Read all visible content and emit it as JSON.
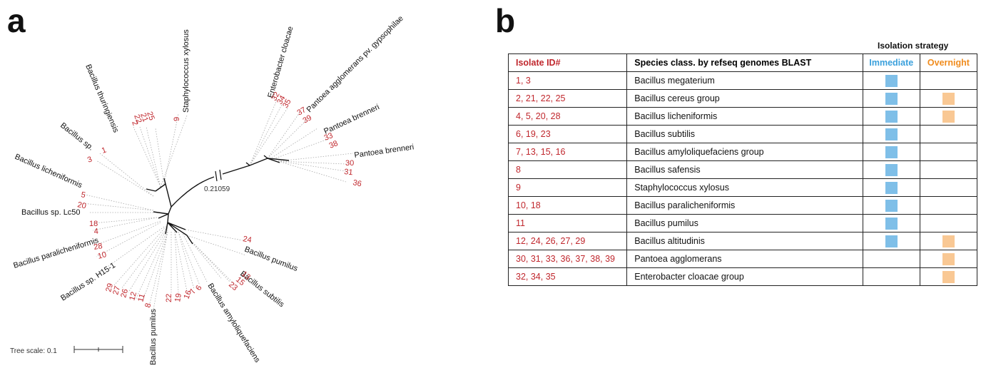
{
  "panel_a": {
    "letter": "a",
    "cut_length_label": "0.21059",
    "scale_label": "Tree scale: 0.1",
    "species_labels": [
      {
        "text": "Staphylococcus xylosus"
      },
      {
        "text": "Enterobacter cloacae"
      },
      {
        "text": "Pantoea agglomerans pv. gypsophilae"
      },
      {
        "text": "Pantoea brenneri"
      },
      {
        "text": "Pantoea brenneri"
      },
      {
        "text": "Bacillus thuringiensis"
      },
      {
        "text": "Bacillus sp."
      },
      {
        "text": "Bacillus licheniformis"
      },
      {
        "text": "Bacillus sp. Lc50"
      },
      {
        "text": "Bacillus paralicheniformis"
      },
      {
        "text": "Bacillus sp. H15-1"
      },
      {
        "text": "Bacillus pumilus"
      },
      {
        "text": "Bacillus pumilus"
      },
      {
        "text": "Bacillus subtilis"
      },
      {
        "text": "Bacillus amyloliquefaciens"
      }
    ],
    "isolate_labels": [
      {
        "text": "9"
      },
      {
        "text": "25"
      },
      {
        "text": "21"
      },
      {
        "text": "22"
      },
      {
        "text": "2"
      },
      {
        "text": "32"
      },
      {
        "text": "34"
      },
      {
        "text": "35"
      },
      {
        "text": "37"
      },
      {
        "text": "39"
      },
      {
        "text": "33"
      },
      {
        "text": "38"
      },
      {
        "text": "30"
      },
      {
        "text": "31"
      },
      {
        "text": "36"
      },
      {
        "text": "1"
      },
      {
        "text": "3"
      },
      {
        "text": "5"
      },
      {
        "text": "20"
      },
      {
        "text": "18"
      },
      {
        "text": "4"
      },
      {
        "text": "28"
      },
      {
        "text": "10"
      },
      {
        "text": "24"
      },
      {
        "text": "13"
      },
      {
        "text": "15"
      },
      {
        "text": "23"
      },
      {
        "text": "29"
      },
      {
        "text": "27"
      },
      {
        "text": "26"
      },
      {
        "text": "12"
      },
      {
        "text": "11"
      },
      {
        "text": "8"
      },
      {
        "text": "22"
      },
      {
        "text": "19"
      },
      {
        "text": "16"
      },
      {
        "text": "7"
      },
      {
        "text": "6"
      }
    ]
  },
  "panel_b": {
    "letter": "b",
    "strategy_header": "Isolation strategy",
    "columns": [
      "Isolate ID#",
      "Species class. by refseq genomes BLAST",
      "Immediate",
      "Overnight"
    ],
    "rows": [
      {
        "id": "1, 3",
        "species": "Bacillus megaterium",
        "immediate": true,
        "overnight": false
      },
      {
        "id": "2, 21, 22, 25",
        "species": "Bacillus cereus group",
        "immediate": true,
        "overnight": true
      },
      {
        "id": "4, 5, 20, 28",
        "species": "Bacillus licheniformis",
        "immediate": true,
        "overnight": true
      },
      {
        "id": "6, 19, 23",
        "species": "Bacillus subtilis",
        "immediate": true,
        "overnight": false
      },
      {
        "id": "7, 13, 15, 16",
        "species": "Bacillus amyloliquefaciens group",
        "immediate": true,
        "overnight": false
      },
      {
        "id": "8",
        "species": "Bacillus safensis",
        "immediate": true,
        "overnight": false
      },
      {
        "id": "9",
        "species": "Staphylococcus xylosus",
        "immediate": true,
        "overnight": false
      },
      {
        "id": "10, 18",
        "species": "Bacillus paralicheniformis",
        "immediate": true,
        "overnight": false
      },
      {
        "id": "11",
        "species": "Bacillus pumilus",
        "immediate": true,
        "overnight": false
      },
      {
        "id": "12, 24, 26, 27, 29",
        "species": "Bacillus altitudinis",
        "immediate": true,
        "overnight": true
      },
      {
        "id": "30, 31, 33, 36, 37, 38, 39",
        "species": "Pantoea agglomerans",
        "immediate": false,
        "overnight": true
      },
      {
        "id": "32, 34, 35",
        "species": "Enterobacter cloacae group",
        "immediate": false,
        "overnight": true
      }
    ],
    "colors": {
      "isolate": "#c0272d",
      "immediate": "#7fbfe8",
      "overnight": "#f9c894",
      "immediate_header": "#3aa0dc",
      "overnight_header": "#f08c1e"
    }
  }
}
